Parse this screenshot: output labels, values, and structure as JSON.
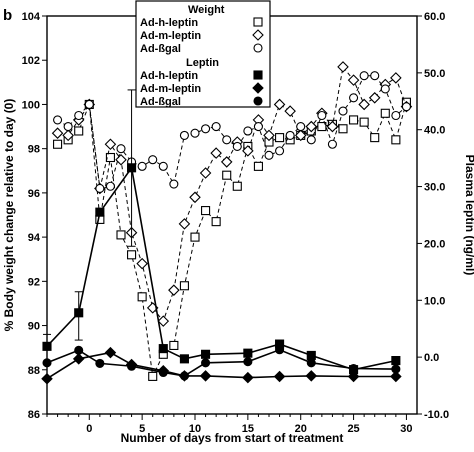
{
  "panel_label": "b",
  "chart_data": {
    "type": "line",
    "xlabel": "Number of days from start of treatment",
    "ylabel_left": "% Body weight change relative to day (0)",
    "ylabel_right": "Plasma leptin (ng/ml)",
    "xlim": [
      -4,
      31
    ],
    "ylim_left": [
      86,
      104
    ],
    "ylim_right": [
      -10,
      60
    ],
    "x_ticks": [
      0,
      5,
      10,
      15,
      20,
      25,
      30
    ],
    "y_left_ticks": [
      86,
      88,
      90,
      92,
      94,
      96,
      98,
      100,
      102,
      104
    ],
    "y_right_ticks": [
      "-10.0",
      "0.0",
      "10.0",
      "20.0",
      "30.0",
      "40.0",
      "50.0",
      "60.0"
    ],
    "legend": {
      "weight_header": "Weight",
      "leptin_header": "Leptin",
      "placement": "top-center"
    },
    "series": [
      {
        "name": "Ad-h-leptin",
        "group": "Weight",
        "axis": "left",
        "marker": "open-square",
        "dash": true,
        "points": [
          [
            -3,
            98.2
          ],
          [
            -2,
            98.4
          ],
          [
            -1,
            98.8
          ],
          [
            0,
            100
          ],
          [
            1,
            94.8
          ],
          [
            2,
            97.6
          ],
          [
            3,
            94.1
          ],
          [
            4,
            93.2
          ],
          [
            5,
            91.3
          ],
          [
            6,
            87.7
          ],
          [
            7,
            88.7
          ],
          [
            8,
            89.1
          ],
          [
            9,
            91.8
          ],
          [
            10,
            94.0
          ],
          [
            11,
            95.2
          ],
          [
            12,
            94.7
          ],
          [
            13,
            96.8
          ],
          [
            14,
            96.3
          ],
          [
            15,
            98.1
          ],
          [
            16,
            97.2
          ],
          [
            17,
            98.3
          ],
          [
            18,
            98.5
          ],
          [
            19,
            98.4
          ],
          [
            20,
            98.6
          ],
          [
            21,
            98.8
          ],
          [
            22,
            99.0
          ],
          [
            23,
            99.1
          ],
          [
            24,
            98.9
          ],
          [
            25,
            99.3
          ],
          [
            26,
            99.2
          ],
          [
            27,
            98.5
          ],
          [
            28,
            99.6
          ],
          [
            29,
            98.4
          ],
          [
            30,
            100.1
          ]
        ]
      },
      {
        "name": "Ad-m-leptin",
        "group": "Weight",
        "axis": "left",
        "marker": "open-diamond",
        "dash": true,
        "points": [
          [
            -3,
            98.7
          ],
          [
            -2,
            98.6
          ],
          [
            -1,
            99.3
          ],
          [
            0,
            100
          ],
          [
            1,
            96.2
          ],
          [
            2,
            98.2
          ],
          [
            3,
            97.5
          ],
          [
            4,
            94.2
          ],
          [
            5,
            92.8
          ],
          [
            6,
            90.8
          ],
          [
            7,
            90.2
          ],
          [
            8,
            91.6
          ],
          [
            9,
            94.6
          ],
          [
            10,
            95.8
          ],
          [
            11,
            96.9
          ],
          [
            12,
            97.8
          ],
          [
            13,
            97.4
          ],
          [
            14,
            98.3
          ],
          [
            15,
            97.9
          ],
          [
            16,
            99.3
          ],
          [
            17,
            98.6
          ],
          [
            18,
            100.0
          ],
          [
            19,
            99.7
          ],
          [
            20,
            98.6
          ],
          [
            21,
            99.0
          ],
          [
            22,
            99.6
          ],
          [
            23,
            99.0
          ],
          [
            24,
            101.7
          ],
          [
            25,
            101.1
          ],
          [
            26,
            100.0
          ],
          [
            27,
            100.3
          ],
          [
            28,
            100.9
          ],
          [
            29,
            101.2
          ],
          [
            30,
            99.9
          ]
        ]
      },
      {
        "name": "Ad-ßgal",
        "group": "Weight",
        "axis": "left",
        "marker": "open-circle",
        "dash": true,
        "points": [
          [
            -3,
            99.3
          ],
          [
            -2,
            99.0
          ],
          [
            -1,
            99.5
          ],
          [
            0,
            100
          ],
          [
            1,
            96.2
          ],
          [
            2,
            96.3
          ],
          [
            3,
            98.0
          ],
          [
            4,
            97.4
          ],
          [
            5,
            97.2
          ],
          [
            6,
            97.5
          ],
          [
            7,
            97.2
          ],
          [
            8,
            96.4
          ],
          [
            9,
            98.6
          ],
          [
            10,
            98.7
          ],
          [
            11,
            98.9
          ],
          [
            12,
            99.0
          ],
          [
            13,
            98.4
          ],
          [
            14,
            98.1
          ],
          [
            15,
            98.8
          ],
          [
            16,
            99.0
          ],
          [
            17,
            97.7
          ],
          [
            18,
            97.9
          ],
          [
            19,
            98.6
          ],
          [
            20,
            99.0
          ],
          [
            21,
            98.4
          ],
          [
            22,
            99.5
          ],
          [
            23,
            98.2
          ],
          [
            24,
            99.7
          ],
          [
            25,
            100.3
          ],
          [
            26,
            101.3
          ],
          [
            27,
            101.3
          ],
          [
            28,
            100.7
          ],
          [
            29,
            99.5
          ],
          [
            30,
            99.9
          ]
        ]
      },
      {
        "name": "Ad-h-leptin",
        "group": "Leptin",
        "axis": "right",
        "marker": "filled-square",
        "dash": false,
        "points": [
          [
            -4,
            1.9
          ],
          [
            -1,
            7.8
          ],
          [
            1,
            25.5
          ],
          [
            4,
            33.3
          ],
          [
            7,
            1.5
          ],
          [
            9,
            -0.3
          ],
          [
            11,
            0.5
          ],
          [
            15,
            0.7
          ],
          [
            18,
            2.3
          ],
          [
            21,
            0.3
          ],
          [
            25,
            -2.2
          ],
          [
            29,
            -0.6
          ]
        ]
      },
      {
        "name": "Ad-m-leptin",
        "group": "Leptin",
        "axis": "right",
        "marker": "filled-diamond",
        "dash": false,
        "points": [
          [
            -4,
            -3.8
          ],
          [
            -1,
            -0.3
          ],
          [
            2,
            0.8
          ],
          [
            4,
            -1.3
          ],
          [
            7,
            -2.4
          ],
          [
            9,
            -3.3
          ],
          [
            11,
            -3.3
          ],
          [
            15,
            -3.6
          ],
          [
            18,
            -3.4
          ],
          [
            21,
            -3.3
          ],
          [
            25,
            -3.4
          ],
          [
            29,
            -3.4
          ]
        ]
      },
      {
        "name": "Ad-ßgal",
        "group": "Leptin",
        "axis": "right",
        "marker": "filled-circle",
        "dash": false,
        "points": [
          [
            -4,
            -1.0
          ],
          [
            -1,
            1.2
          ],
          [
            1,
            -1.1
          ],
          [
            4,
            -1.6
          ],
          [
            7,
            -2.7
          ],
          [
            9,
            -3.3
          ],
          [
            11,
            -1.0
          ],
          [
            15,
            -0.8
          ],
          [
            18,
            1.3
          ],
          [
            21,
            -1.0
          ],
          [
            25,
            -2.0
          ],
          [
            29,
            -2.1
          ]
        ]
      }
    ],
    "error_bars": [
      {
        "series_index": 3,
        "x": 4,
        "low": 19.5,
        "high": 47.0
      },
      {
        "series_index": 3,
        "x": -1,
        "low": 3.0,
        "high": 11.5
      },
      {
        "series_index": 5,
        "x": -4,
        "low": -4.0,
        "high": 4.0
      }
    ]
  }
}
